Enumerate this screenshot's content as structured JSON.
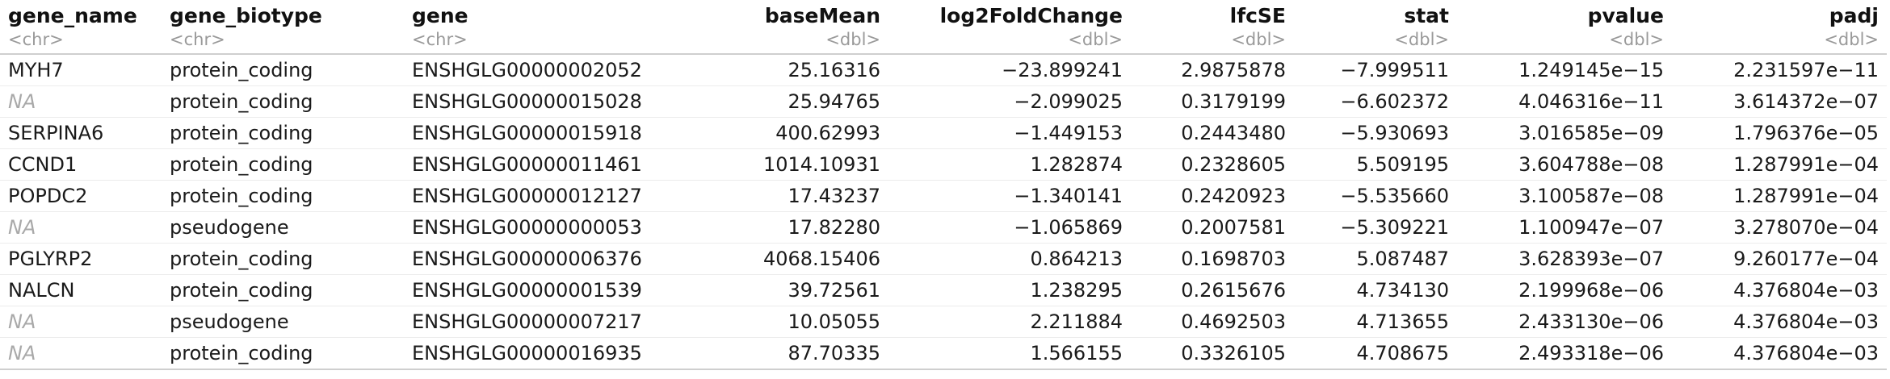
{
  "table": {
    "columns": [
      {
        "name": "gene_name",
        "type": "<chr>",
        "align": "left"
      },
      {
        "name": "gene_biotype",
        "type": "<chr>",
        "align": "left"
      },
      {
        "name": "gene",
        "type": "<chr>",
        "align": "left"
      },
      {
        "name": "baseMean",
        "type": "<dbl>",
        "align": "right"
      },
      {
        "name": "log2FoldChange",
        "type": "<dbl>",
        "align": "right"
      },
      {
        "name": "lfcSE",
        "type": "<dbl>",
        "align": "right"
      },
      {
        "name": "stat",
        "type": "<dbl>",
        "align": "right"
      },
      {
        "name": "pvalue",
        "type": "<dbl>",
        "align": "right"
      },
      {
        "name": "padj",
        "type": "<dbl>",
        "align": "right"
      }
    ],
    "rows": [
      [
        "MYH7",
        "protein_coding",
        "ENSHGLG00000002052",
        "25.16316",
        "−23.899241",
        "2.9875878",
        "−7.999511",
        "1.249145e−15",
        "2.231597e−11"
      ],
      [
        "NA",
        "protein_coding",
        "ENSHGLG00000015028",
        "25.94765",
        "−2.099025",
        "0.3179199",
        "−6.602372",
        "4.046316e−11",
        "3.614372e−07"
      ],
      [
        "SERPINA6",
        "protein_coding",
        "ENSHGLG00000015918",
        "400.62993",
        "−1.449153",
        "0.2443480",
        "−5.930693",
        "3.016585e−09",
        "1.796376e−05"
      ],
      [
        "CCND1",
        "protein_coding",
        "ENSHGLG00000011461",
        "1014.10931",
        "1.282874",
        "0.2328605",
        "5.509195",
        "3.604788e−08",
        "1.287991e−04"
      ],
      [
        "POPDC2",
        "protein_coding",
        "ENSHGLG00000012127",
        "17.43237",
        "−1.340141",
        "0.2420923",
        "−5.535660",
        "3.100587e−08",
        "1.287991e−04"
      ],
      [
        "NA",
        "pseudogene",
        "ENSHGLG00000000053",
        "17.82280",
        "−1.065869",
        "0.2007581",
        "−5.309221",
        "1.100947e−07",
        "3.278070e−04"
      ],
      [
        "PGLYRP2",
        "protein_coding",
        "ENSHGLG00000006376",
        "4068.15406",
        "0.864213",
        "0.1698703",
        "5.087487",
        "3.628393e−07",
        "9.260177e−04"
      ],
      [
        "NALCN",
        "protein_coding",
        "ENSHGLG00000001539",
        "39.72561",
        "1.238295",
        "0.2615676",
        "4.734130",
        "2.199968e−06",
        "4.376804e−03"
      ],
      [
        "NA",
        "pseudogene",
        "ENSHGLG00000007217",
        "10.05055",
        "2.211884",
        "0.4692503",
        "4.713655",
        "2.433130e−06",
        "4.376804e−03"
      ],
      [
        "NA",
        "protein_coding",
        "ENSHGLG00000016935",
        "87.70335",
        "1.566155",
        "0.3326105",
        "4.708675",
        "2.493318e−06",
        "4.376804e−03"
      ]
    ]
  }
}
